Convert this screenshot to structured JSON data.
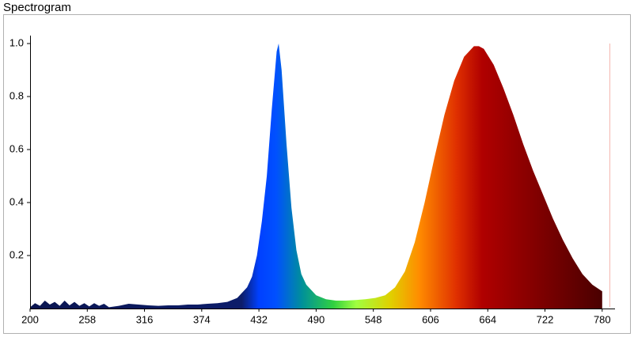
{
  "chart_data": {
    "type": "area",
    "title": "Spectrogram",
    "x": [
      200,
      205,
      210,
      215,
      220,
      225,
      230,
      235,
      240,
      245,
      250,
      255,
      260,
      265,
      270,
      275,
      280,
      290,
      300,
      310,
      320,
      330,
      340,
      350,
      360,
      370,
      380,
      390,
      400,
      410,
      420,
      425,
      430,
      435,
      440,
      445,
      450,
      452,
      455,
      460,
      465,
      470,
      475,
      480,
      490,
      500,
      510,
      520,
      530,
      540,
      550,
      560,
      570,
      580,
      590,
      600,
      610,
      620,
      630,
      640,
      650,
      655,
      660,
      670,
      680,
      690,
      700,
      710,
      720,
      730,
      740,
      750,
      760,
      770,
      780
    ],
    "values": [
      0.005,
      0.02,
      0.01,
      0.03,
      0.015,
      0.025,
      0.01,
      0.03,
      0.012,
      0.025,
      0.01,
      0.02,
      0.008,
      0.02,
      0.01,
      0.018,
      0.005,
      0.01,
      0.018,
      0.015,
      0.012,
      0.01,
      0.012,
      0.012,
      0.015,
      0.015,
      0.018,
      0.02,
      0.025,
      0.04,
      0.08,
      0.12,
      0.2,
      0.33,
      0.5,
      0.75,
      0.97,
      1.0,
      0.9,
      0.62,
      0.38,
      0.22,
      0.13,
      0.09,
      0.05,
      0.035,
      0.03,
      0.03,
      0.032,
      0.035,
      0.04,
      0.05,
      0.08,
      0.14,
      0.25,
      0.4,
      0.57,
      0.73,
      0.86,
      0.95,
      0.99,
      0.99,
      0.98,
      0.92,
      0.83,
      0.73,
      0.62,
      0.52,
      0.43,
      0.34,
      0.26,
      0.19,
      0.13,
      0.09,
      0.065
    ],
    "xlim": [
      200,
      793
    ],
    "ylim": [
      0,
      1.03
    ],
    "xticks": [
      200,
      258,
      316,
      374,
      432,
      490,
      548,
      606,
      664,
      722,
      780
    ],
    "yticks": [
      0.2,
      0.4,
      0.6,
      0.8,
      {
        "value": 1,
        "label": "1.0"
      }
    ]
  }
}
